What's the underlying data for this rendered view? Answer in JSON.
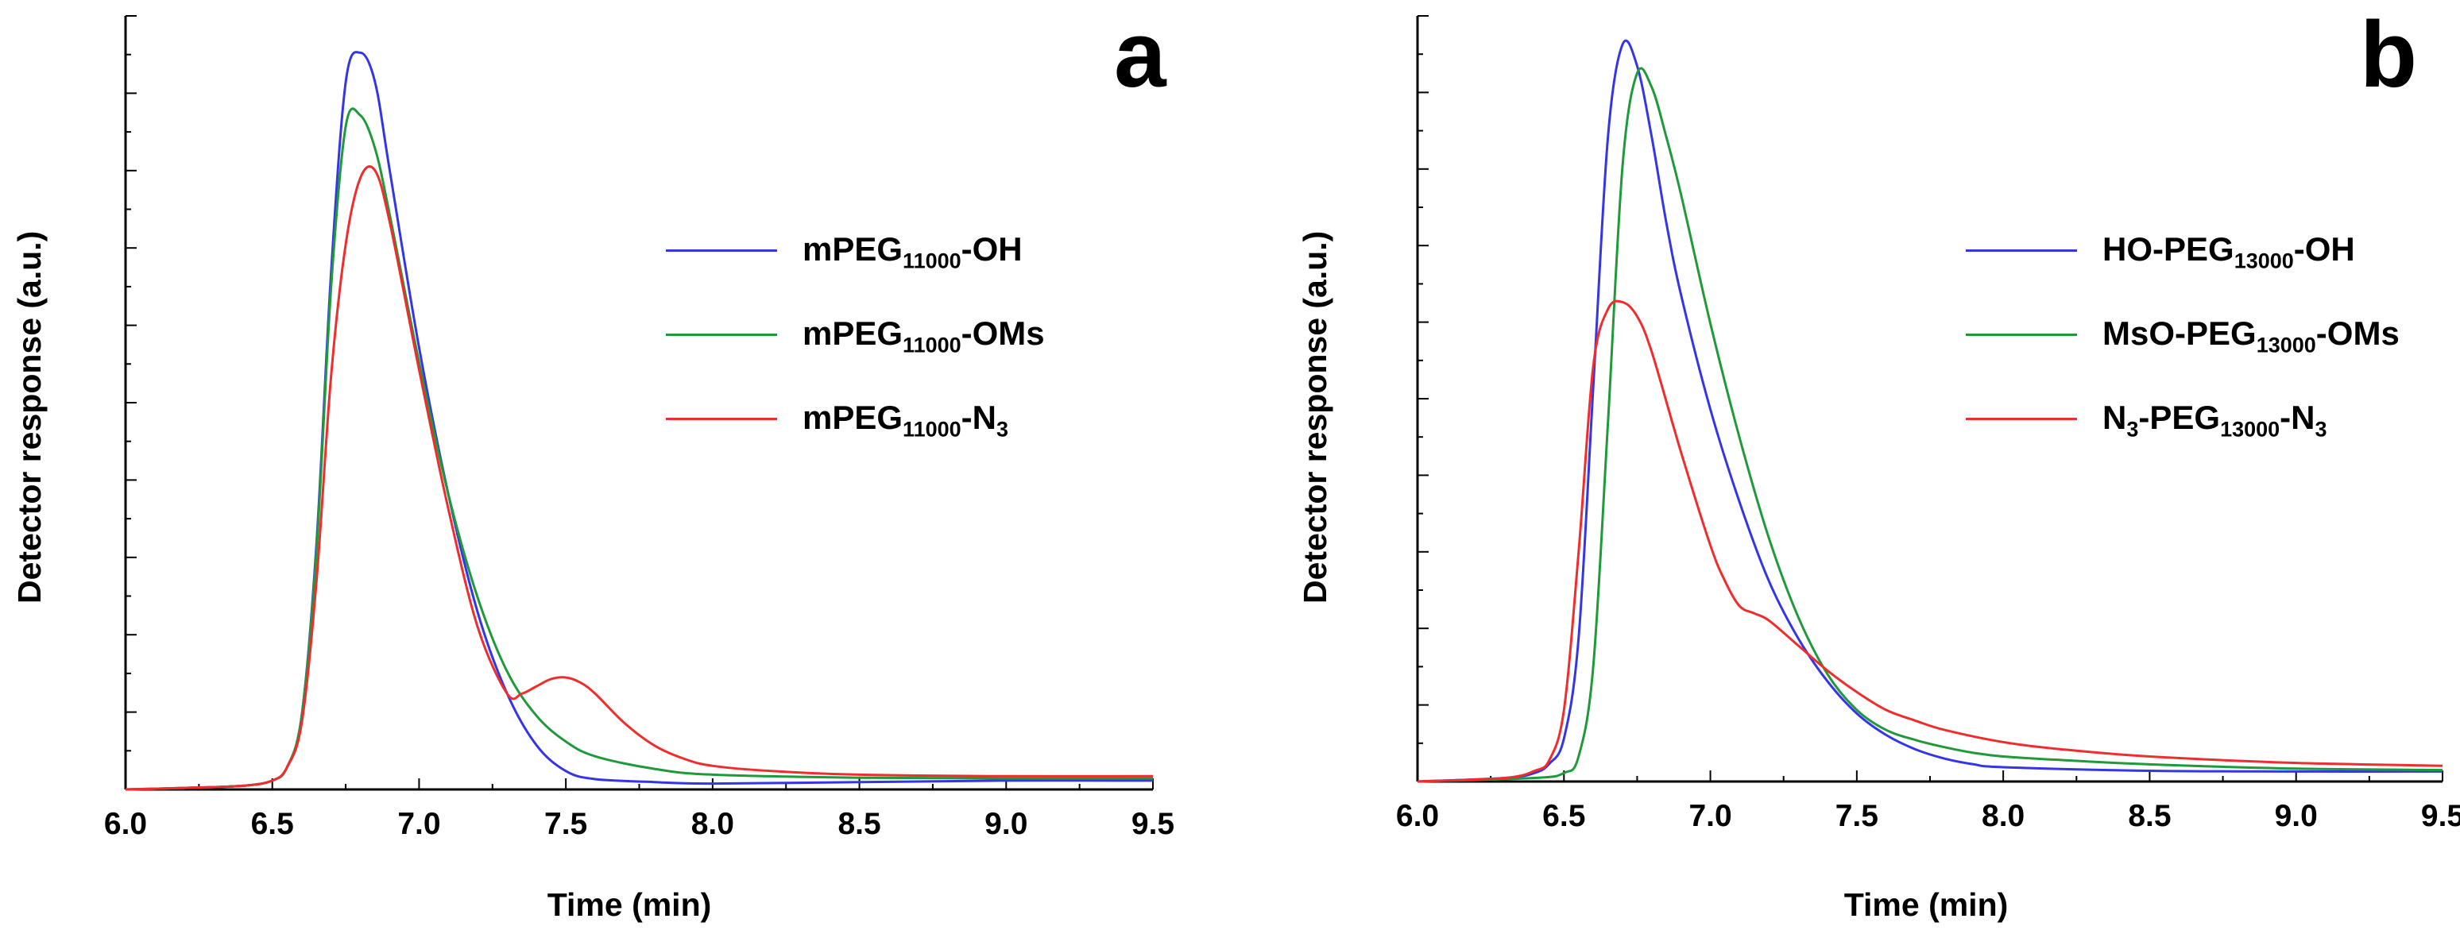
{
  "chart_data": [
    {
      "type": "line",
      "panel_letter": "a",
      "xlabel": "Time (min)",
      "ylabel": "Detector response (a.u.)",
      "xlim": [
        6.0,
        9.5
      ],
      "ylim": [
        0,
        1.05
      ],
      "xticks": [
        "6.0",
        "6.5",
        "7.0",
        "7.5",
        "8.0",
        "8.5",
        "9.0",
        "9.5"
      ],
      "grid": false,
      "legend_position": "upper-right",
      "series": [
        {
          "name": "mPEG11000-OH",
          "label_parts": [
            "mPEG",
            "11000",
            "-OH",
            "",
            ""
          ],
          "color": "#3535e8",
          "x": [
            6.0,
            6.2,
            6.4,
            6.5,
            6.55,
            6.6,
            6.65,
            6.7,
            6.75,
            6.8,
            6.85,
            6.9,
            7.0,
            7.1,
            7.2,
            7.3,
            7.4,
            7.5,
            7.6,
            7.8,
            8.0,
            8.5,
            9.0,
            9.5
          ],
          "y": [
            0.0,
            0.002,
            0.005,
            0.012,
            0.03,
            0.1,
            0.33,
            0.7,
            0.96,
            1.0,
            0.96,
            0.84,
            0.6,
            0.4,
            0.24,
            0.13,
            0.06,
            0.025,
            0.014,
            0.01,
            0.008,
            0.01,
            0.012,
            0.012
          ]
        },
        {
          "name": "mPEG11000-OMs",
          "label_parts": [
            "mPEG",
            "11000",
            "-OMs",
            "",
            ""
          ],
          "color": "#1f9a3a",
          "x": [
            6.0,
            6.2,
            6.4,
            6.5,
            6.55,
            6.6,
            6.65,
            6.7,
            6.75,
            6.8,
            6.85,
            6.9,
            7.0,
            7.1,
            7.2,
            7.3,
            7.4,
            7.5,
            7.6,
            7.8,
            8.0,
            8.5,
            9.0,
            9.5
          ],
          "y": [
            0.0,
            0.002,
            0.005,
            0.012,
            0.03,
            0.1,
            0.32,
            0.68,
            0.9,
            0.915,
            0.87,
            0.78,
            0.58,
            0.4,
            0.26,
            0.16,
            0.1,
            0.065,
            0.045,
            0.028,
            0.02,
            0.016,
            0.015,
            0.015
          ]
        },
        {
          "name": "mPEG11000-N3",
          "label_parts": [
            "mPEG",
            "11000",
            "-N",
            "3",
            ""
          ],
          "color": "#f02d2d",
          "x": [
            6.0,
            6.2,
            6.4,
            6.5,
            6.55,
            6.6,
            6.65,
            6.7,
            6.75,
            6.8,
            6.85,
            6.9,
            7.0,
            7.1,
            7.2,
            7.3,
            7.35,
            7.4,
            7.45,
            7.5,
            7.55,
            7.6,
            7.7,
            7.8,
            7.9,
            8.0,
            8.2,
            8.5,
            9.0,
            9.5
          ],
          "y": [
            0.0,
            0.002,
            0.005,
            0.012,
            0.03,
            0.09,
            0.28,
            0.56,
            0.74,
            0.83,
            0.84,
            0.77,
            0.57,
            0.38,
            0.22,
            0.13,
            0.13,
            0.14,
            0.15,
            0.152,
            0.145,
            0.13,
            0.09,
            0.06,
            0.042,
            0.032,
            0.025,
            0.02,
            0.018,
            0.018
          ]
        }
      ]
    },
    {
      "type": "line",
      "panel_letter": "b",
      "xlabel": "Time (min)",
      "ylabel": "Detector response (a.u.)",
      "xlim": [
        6.0,
        9.5
      ],
      "ylim": [
        0,
        1.07
      ],
      "xticks": [
        "6.0",
        "6.5",
        "7.0",
        "7.5",
        "8.0",
        "8.5",
        "9.0",
        "9.5"
      ],
      "grid": false,
      "legend_position": "upper-right",
      "series": [
        {
          "name": "HO-PEG13000-OH",
          "label_parts": [
            "HO-PEG",
            "13000",
            "-OH",
            "",
            ""
          ],
          "color": "#3535e8",
          "x": [
            6.0,
            6.3,
            6.4,
            6.45,
            6.5,
            6.55,
            6.6,
            6.65,
            6.7,
            6.75,
            6.8,
            6.85,
            6.9,
            7.0,
            7.1,
            7.2,
            7.3,
            7.4,
            7.5,
            7.6,
            7.7,
            7.8,
            7.9,
            8.0,
            8.5,
            9.0,
            9.5
          ],
          "y": [
            0.0,
            0.005,
            0.012,
            0.025,
            0.06,
            0.2,
            0.55,
            0.9,
            1.03,
            1.0,
            0.9,
            0.78,
            0.68,
            0.52,
            0.39,
            0.28,
            0.2,
            0.14,
            0.095,
            0.065,
            0.045,
            0.032,
            0.024,
            0.02,
            0.015,
            0.014,
            0.014
          ]
        },
        {
          "name": "MsO-PEG13000-OMs",
          "label_parts": [
            "MsO-PEG",
            "13000",
            "-OMs",
            "",
            ""
          ],
          "color": "#1f9a3a",
          "x": [
            6.0,
            6.4,
            6.5,
            6.55,
            6.6,
            6.65,
            6.7,
            6.75,
            6.8,
            6.85,
            6.9,
            7.0,
            7.1,
            7.2,
            7.3,
            7.4,
            7.5,
            7.6,
            7.7,
            7.8,
            7.9,
            8.0,
            8.2,
            8.5,
            9.0,
            9.5
          ],
          "y": [
            0.0,
            0.005,
            0.012,
            0.035,
            0.16,
            0.5,
            0.86,
            0.99,
            0.97,
            0.9,
            0.82,
            0.64,
            0.48,
            0.34,
            0.23,
            0.15,
            0.1,
            0.072,
            0.058,
            0.048,
            0.04,
            0.035,
            0.03,
            0.024,
            0.018,
            0.016
          ]
        },
        {
          "name": "N3-PEG13000-N3",
          "label_parts": [
            "N",
            "3",
            "-PEG",
            "13000",
            "-N3"
          ],
          "color": "#f02d2d",
          "x": [
            6.0,
            6.3,
            6.4,
            6.45,
            6.5,
            6.55,
            6.6,
            6.65,
            6.7,
            6.75,
            6.8,
            6.9,
            7.0,
            7.05,
            7.1,
            7.15,
            7.2,
            7.3,
            7.4,
            7.5,
            7.6,
            7.7,
            7.8,
            8.0,
            8.2,
            8.5,
            9.0,
            9.5
          ],
          "y": [
            0.0,
            0.005,
            0.015,
            0.03,
            0.1,
            0.32,
            0.58,
            0.66,
            0.67,
            0.65,
            0.6,
            0.46,
            0.33,
            0.28,
            0.245,
            0.235,
            0.225,
            0.19,
            0.155,
            0.125,
            0.1,
            0.085,
            0.072,
            0.055,
            0.045,
            0.035,
            0.026,
            0.022
          ]
        }
      ]
    }
  ]
}
